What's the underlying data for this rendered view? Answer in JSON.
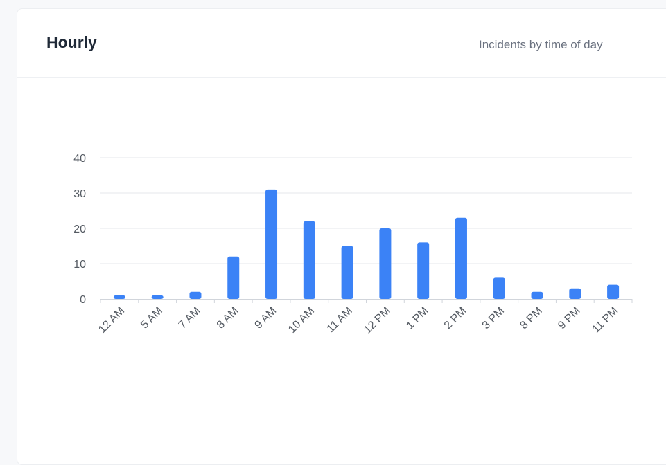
{
  "card": {
    "title": "Hourly",
    "subtitle": "Incidents by time of day"
  },
  "colors": {
    "bar": "#3b82f6",
    "grid": "#e5e7eb",
    "axis": "#d1d5db"
  },
  "chart_data": {
    "type": "bar",
    "categories": [
      "12 AM",
      "5 AM",
      "7 AM",
      "8 AM",
      "9 AM",
      "10 AM",
      "11 AM",
      "12 PM",
      "1 PM",
      "2 PM",
      "3 PM",
      "8 PM",
      "9 PM",
      "11 PM"
    ],
    "values": [
      1,
      1,
      2,
      12,
      31,
      22,
      15,
      20,
      16,
      23,
      6,
      2,
      3,
      4
    ],
    "ylim": [
      0,
      40
    ],
    "yticks": [
      0,
      10,
      20,
      30,
      40
    ],
    "grid": true,
    "legend": "none"
  }
}
